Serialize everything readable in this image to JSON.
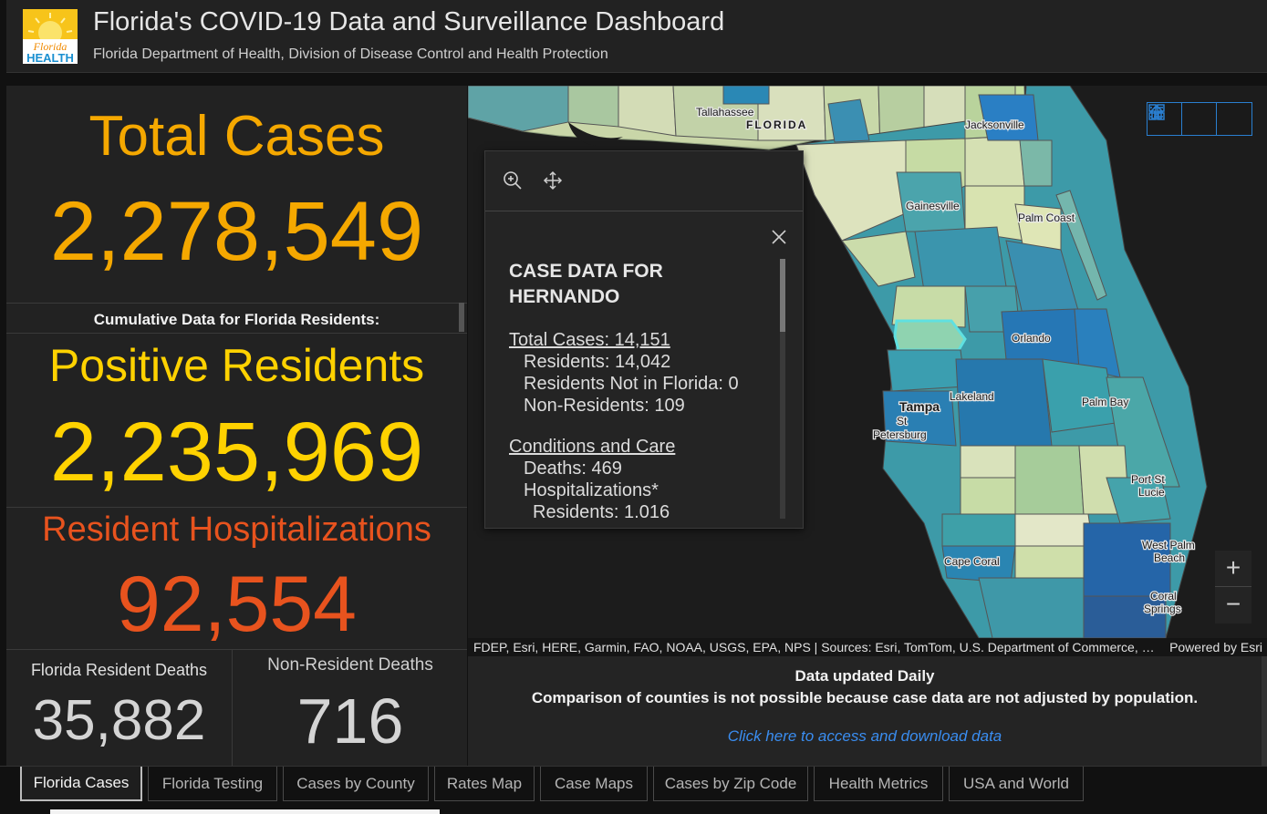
{
  "header": {
    "logo_text_top": "Florida",
    "logo_text_bottom": "HEALTH",
    "title": "Florida's COVID-19 Data and Surveillance Dashboard",
    "subtitle": "Florida Department of Health, Division of Disease Control and Health Protection"
  },
  "stats": {
    "total_cases_label": "Total Cases",
    "total_cases_value": "2,278,549",
    "cumulative_label": "Cumulative Data for Florida Residents:",
    "positive_label": "Positive Residents",
    "positive_value": "2,235,969",
    "hospitalizations_label": "Resident Hospitalizations",
    "hospitalizations_value": "92,554",
    "resident_deaths_label": "Florida Resident Deaths",
    "resident_deaths_value": "35,882",
    "nonresident_deaths_label": "Non-Resident Deaths",
    "nonresident_deaths_value": "716"
  },
  "colors": {
    "total": "#f5a800",
    "positive": "#ffd200",
    "hospitalizations": "#e8531e",
    "accent_blue": "#2a7fd0"
  },
  "map": {
    "state_label": "FLORIDA",
    "cities": {
      "tallahassee": "Tallahassee",
      "jacksonville": "Jacksonville",
      "gainesville": "Gainesville",
      "palm_coast": "Palm Coast",
      "orlando": "Orlando",
      "tampa": "Tampa",
      "st": "St",
      "petersburg": "Petersburg",
      "lakeland": "Lakeland",
      "palm_bay": "Palm Bay",
      "port_st": "Port St",
      "lucie": "Lucie",
      "west_palm": "West Palm",
      "beach": "Beach",
      "cape_coral": "Cape Coral",
      "coral": "Coral",
      "springs": "Springs"
    },
    "tools": [
      "home-icon",
      "legend-list-icon",
      "basemap-gallery-icon"
    ],
    "zoom_in": "+",
    "zoom_out": "−",
    "attribution": "FDEP, Esri, HERE, Garmin, FAO, NOAA, USGS, EPA, NPS | Sources: Esri, TomTom, U.S. Department of Commerce, Census Bureau",
    "powered_by": "Powered by Esri"
  },
  "popup": {
    "title": "CASE DATA FOR HERNANDO",
    "total_cases": "Total Cases: 14,151",
    "residents": "Residents: 14,042",
    "residents_not_in_fl": "Residents Not in Florida: 0",
    "non_residents": "Non-Residents: 109",
    "conditions_heading": "Conditions and Care",
    "deaths": "Deaths: 469",
    "hospitalizations": "Hospitalizations*",
    "hosp_residents": "Residents: 1,016"
  },
  "info": {
    "line1": "Data updated Daily",
    "line2": "Comparison of counties is not possible because case data are not adjusted by population.",
    "link": "Click here to access and download data"
  },
  "tabs": [
    {
      "label": "Florida Cases",
      "active": true
    },
    {
      "label": "Florida Testing"
    },
    {
      "label": "Cases by County"
    },
    {
      "label": "Rates Map"
    },
    {
      "label": "Case Maps"
    },
    {
      "label": "Cases by Zip Code"
    },
    {
      "label": "Health Metrics"
    },
    {
      "label": "USA and World"
    }
  ]
}
